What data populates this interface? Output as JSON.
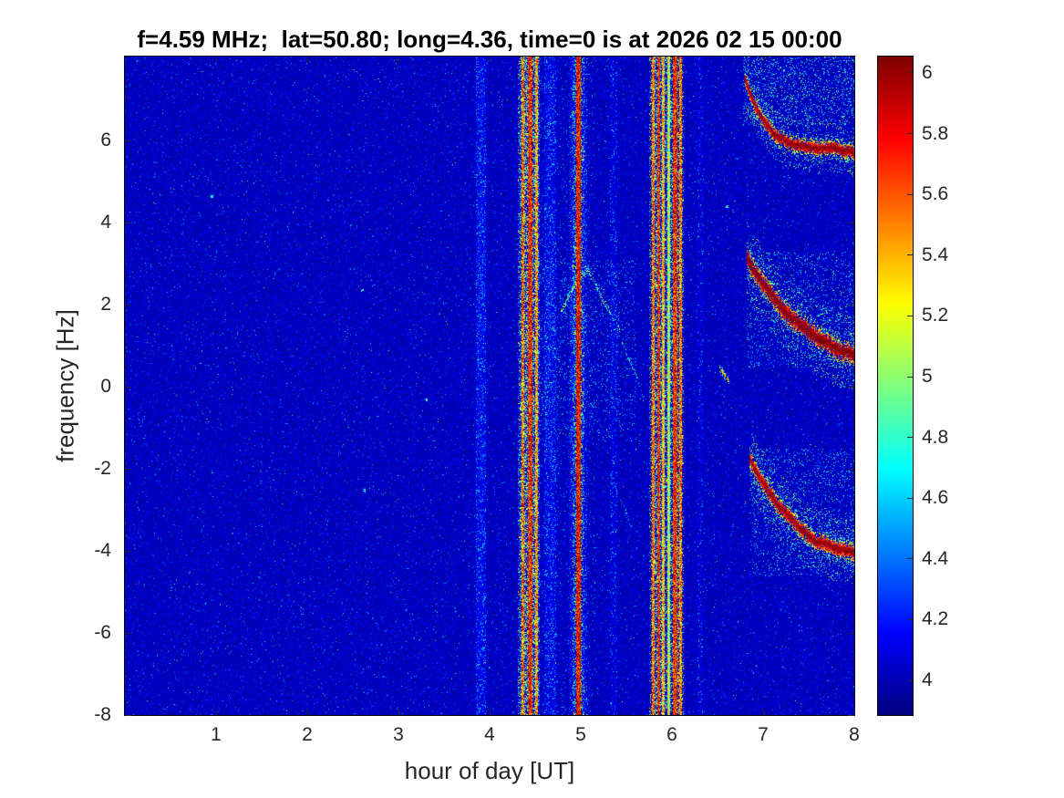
{
  "chart_data": {
    "type": "heatmap",
    "title": "f=4.59 MHz;  lat=50.80; long=4.36, time=0 is at 2026 02 15 00:00",
    "xlabel": "hour of day [UT]",
    "ylabel": "frequency [Hz]",
    "xlim": [
      0,
      8
    ],
    "ylim": [
      -8,
      8.05
    ],
    "xticks": [
      1,
      2,
      3,
      4,
      5,
      6,
      7,
      8
    ],
    "yticks": [
      -8,
      -6,
      -4,
      -2,
      0,
      2,
      4,
      6
    ],
    "colormap": "jet",
    "colorbar": {
      "range": [
        3.886,
        6.054
      ],
      "ticks": [
        4,
        4.2,
        4.4,
        4.6,
        4.8,
        5,
        5.2,
        5.4,
        5.6,
        5.8,
        6
      ]
    },
    "background": {
      "base": 3.92,
      "spread": 0.2,
      "speckle_prob": 0.035,
      "speckle_add": 0.45,
      "bright_prob": 0.004
    },
    "faint_columns": [
      {
        "x": 3.9,
        "w": 0.1,
        "boost": 0.18,
        "speckle": 0.1
      },
      {
        "x": 4.43,
        "w": 0.22,
        "boost": 0.1,
        "speckle": 0.06
      },
      {
        "x": 4.66,
        "w": 0.12,
        "boost": 0.16,
        "speckle": 0.1
      },
      {
        "x": 4.97,
        "w": 0.18,
        "boost": 0.12,
        "speckle": 0.08
      },
      {
        "x": 5.35,
        "w": 0.07,
        "boost": 0.1,
        "speckle": 0.05
      },
      {
        "x": 5.93,
        "w": 0.25,
        "boost": 0.08,
        "speckle": 0.05
      },
      {
        "x": 6.3,
        "w": 0.05,
        "boost": 0.08,
        "speckle": 0.04
      }
    ],
    "stripes": [
      {
        "x": 4.36,
        "w": 0.035,
        "vmin": 5.0,
        "vmax": 6.1
      },
      {
        "x": 4.44,
        "w": 0.05,
        "vmin": 5.3,
        "vmax": 6.2
      },
      {
        "x": 4.51,
        "w": 0.022,
        "vmin": 4.9,
        "vmax": 5.9
      },
      {
        "x": 4.97,
        "w": 0.045,
        "vmin": 5.4,
        "vmax": 6.2
      },
      {
        "x": 5.79,
        "w": 0.028,
        "vmin": 5.1,
        "vmax": 6.0
      },
      {
        "x": 5.85,
        "w": 0.03,
        "vmin": 5.3,
        "vmax": 6.15
      },
      {
        "x": 5.9,
        "w": 0.02,
        "vmin": 4.9,
        "vmax": 5.8
      },
      {
        "x": 5.96,
        "w": 0.015,
        "vmin": 4.7,
        "vmax": 5.5
      },
      {
        "x": 6.03,
        "w": 0.04,
        "vmin": 5.3,
        "vmax": 6.2
      },
      {
        "x": 6.09,
        "w": 0.022,
        "vmin": 5.0,
        "vmax": 6.0
      }
    ],
    "traces": [
      {
        "points": [
          [
            6.8,
            7.5
          ],
          [
            6.88,
            7.0
          ],
          [
            7.0,
            6.5
          ],
          [
            7.15,
            6.1
          ],
          [
            7.35,
            5.92
          ],
          [
            7.6,
            5.85
          ],
          [
            7.8,
            5.8
          ],
          [
            8.0,
            5.72
          ]
        ],
        "sigma": 0.12,
        "vcore": 6.0,
        "fuzz": 0.6,
        "fuzzp": 0.18,
        "density": 1
      },
      {
        "points": [
          [
            6.82,
            3.15
          ],
          [
            6.95,
            2.65
          ],
          [
            7.1,
            2.2
          ],
          [
            7.3,
            1.7
          ],
          [
            7.5,
            1.35
          ],
          [
            7.7,
            1.05
          ],
          [
            7.85,
            0.9
          ],
          [
            8.0,
            0.78
          ]
        ],
        "sigma": 0.16,
        "vcore": 6.1,
        "fuzz": 0.9,
        "fuzzp": 0.18,
        "density": 1
      },
      {
        "points": [
          [
            6.85,
            -1.75
          ],
          [
            7.0,
            -2.35
          ],
          [
            7.15,
            -2.85
          ],
          [
            7.35,
            -3.35
          ],
          [
            7.55,
            -3.7
          ],
          [
            7.75,
            -3.9
          ],
          [
            8.0,
            -4.05
          ]
        ],
        "sigma": 0.14,
        "vcore": 6.0,
        "fuzz": 0.8,
        "fuzzp": 0.16,
        "density": 1
      },
      {
        "points": [
          [
            4.78,
            1.85
          ],
          [
            4.95,
            2.5
          ],
          [
            5.07,
            2.85
          ]
        ],
        "sigma": 0.08,
        "vcore": 5.0,
        "fuzz": 0.3,
        "fuzzp": 0.05,
        "density": 0.5
      },
      {
        "points": [
          [
            5.07,
            2.85
          ],
          [
            5.25,
            2.1
          ],
          [
            5.42,
            1.4
          ]
        ],
        "sigma": 0.08,
        "vcore": 4.9,
        "fuzz": 0.25,
        "fuzzp": 0.04,
        "density": 0.4
      },
      {
        "points": [
          [
            5.45,
            1.1
          ],
          [
            5.6,
            0.3
          ],
          [
            5.68,
            -0.3
          ]
        ],
        "sigma": 0.07,
        "vcore": 4.75,
        "density": 0.3
      },
      {
        "points": [
          [
            5.3,
            -2.0
          ],
          [
            5.45,
            -2.8
          ],
          [
            5.55,
            -3.35
          ]
        ],
        "sigma": 0.07,
        "vcore": 4.7,
        "density": 0.3
      },
      {
        "points": [
          [
            6.52,
            0.45
          ],
          [
            6.62,
            0.15
          ]
        ],
        "sigma": 0.07,
        "vcore": 5.3,
        "density": 0.6
      }
    ],
    "clouds": [
      {
        "x0": 6.78,
        "x1": 8.0,
        "y0": 6.4,
        "y1": 8.05,
        "density": 0.12,
        "vmin": 4.45,
        "vspread": 0.6
      },
      {
        "x0": 6.82,
        "x1": 8.0,
        "y0": 0.5,
        "y1": 3.3,
        "density": 0.07,
        "vmin": 4.4,
        "vspread": 0.55
      },
      {
        "x0": 6.85,
        "x1": 8.0,
        "y0": -4.6,
        "y1": -1.5,
        "density": 0.07,
        "vmin": 4.4,
        "vspread": 0.55
      },
      {
        "x0": 4.5,
        "x1": 5.6,
        "y0": -1.3,
        "y1": 3.1,
        "density": 0.045,
        "vmin": 4.35,
        "vspread": 0.5
      },
      {
        "x0": 4.55,
        "x1": 5.15,
        "y0": -8.0,
        "y1": 8.05,
        "density": 0.02,
        "vmin": 4.3,
        "vspread": 0.45
      }
    ],
    "spots": {
      "points": [
        [
          0.95,
          4.65
        ],
        [
          2.6,
          2.35
        ],
        [
          2.62,
          -2.5
        ],
        [
          3.3,
          -0.3
        ],
        [
          6.6,
          4.4
        ]
      ],
      "value": 5.0
    },
    "annotations": {
      "description": "Doppler spectrogram: dark-blue noise background; strong red full-height interference stripes near hours 4.4, 5.0 and 5.8-6.1; three descending red Doppler traces after hour 6.8 settling near +5.7, +0.8 and -4 Hz"
    }
  }
}
